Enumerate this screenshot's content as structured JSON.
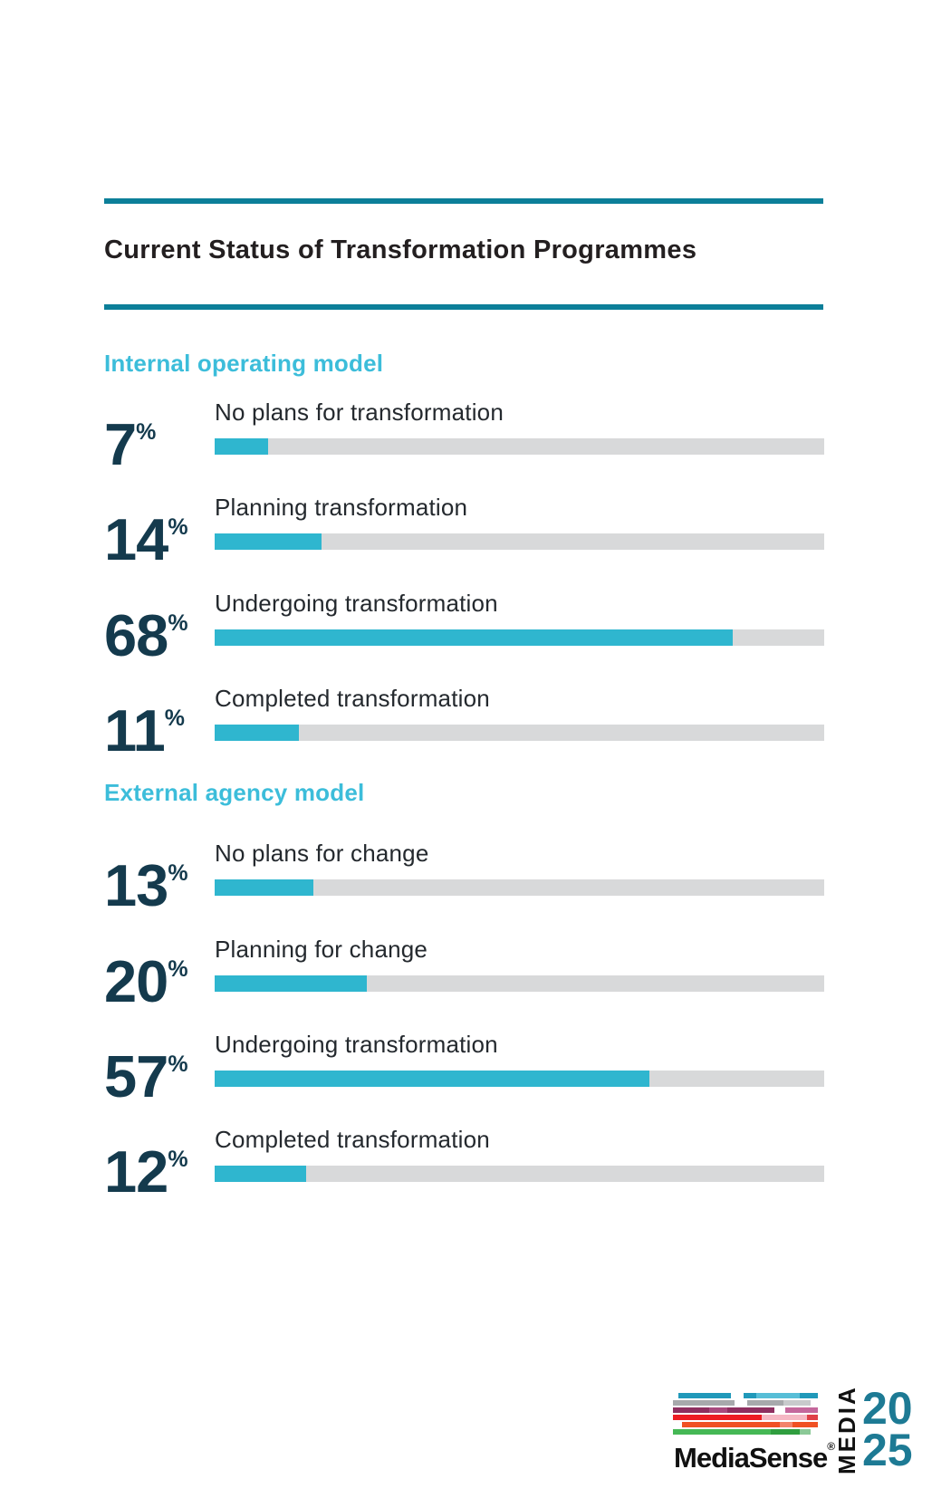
{
  "page": {
    "title": "Current Status of Transformation Programmes"
  },
  "percent_sign": "%",
  "chart_data": {
    "type": "bar",
    "title": "Current Status of Transformation Programmes",
    "orientation": "horizontal",
    "unit": "%",
    "axis_max_implied": 80,
    "groups": [
      {
        "name": "Internal operating model",
        "categories": [
          "No plans for transformation",
          "Planning transformation",
          "Undergoing transformation",
          "Completed transformation"
        ],
        "values": [
          7,
          14,
          68,
          11
        ]
      },
      {
        "name": "External agency model",
        "categories": [
          "No plans for change",
          "Planning for change",
          "Undergoing transformation",
          "Completed transformation"
        ],
        "values": [
          13,
          20,
          57,
          12
        ]
      }
    ]
  },
  "sections": [
    {
      "header": "Internal operating model",
      "rows": [
        {
          "value": 7,
          "label": "No plans for transformation"
        },
        {
          "value": 14,
          "label": "Planning transformation"
        },
        {
          "value": 68,
          "label": "Undergoing transformation"
        },
        {
          "value": 11,
          "label": "Completed transformation"
        }
      ]
    },
    {
      "header": "External agency model",
      "rows": [
        {
          "value": 13,
          "label": "No plans for change"
        },
        {
          "value": 20,
          "label": "Planning for change"
        },
        {
          "value": 57,
          "label": "Undergoing transformation"
        },
        {
          "value": 12,
          "label": "Completed transformation"
        }
      ]
    }
  ],
  "footer": {
    "brand": "MediaSense",
    "registered_mark": "®",
    "event_vertical": "MEDIA",
    "event_year_top": "20",
    "event_year_bottom": "25"
  },
  "colors": {
    "rule_teal": "#0c7f99",
    "section_header_cyan": "#3cbdda",
    "bar_fill_cyan": "#2fb6cf",
    "bar_track_gray": "#d8d9da",
    "number_navy": "#143a4d",
    "title_black": "#231f20",
    "year_teal": "#1d7a94"
  }
}
